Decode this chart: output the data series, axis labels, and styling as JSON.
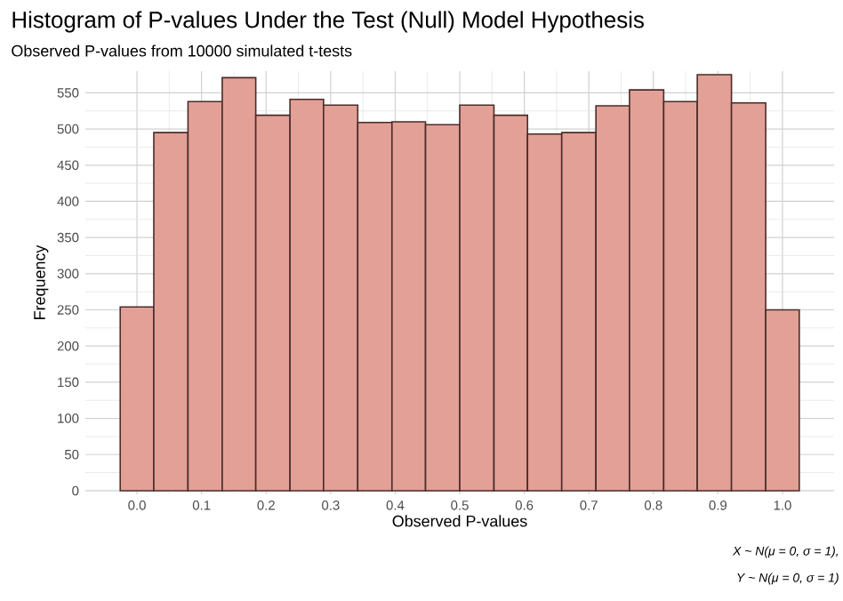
{
  "chart_data": {
    "type": "histogram",
    "title": "Histogram of P-values Under the Test (Null) Model Hypothesis",
    "subtitle": "Observed P-values from 10000 simulated t-tests",
    "xlabel": "Observed P-values",
    "ylabel": "Frequency",
    "bins": [
      -0.026,
      0.026,
      0.079,
      0.132,
      0.184,
      0.237,
      0.289,
      0.342,
      0.395,
      0.447,
      0.5,
      0.553,
      0.605,
      0.658,
      0.711,
      0.763,
      0.816,
      0.868,
      0.921,
      0.974,
      1.026
    ],
    "values": [
      254,
      495,
      538,
      571,
      519,
      541,
      533,
      509,
      510,
      506,
      533,
      519,
      493,
      495,
      532,
      554,
      538,
      575,
      536,
      250
    ],
    "color": "#e3a096",
    "xlim": [
      -0.08,
      1.08
    ],
    "ylim": [
      -5,
      580
    ],
    "xticks": [
      {
        "value": 0,
        "label": "0.0"
      },
      {
        "value": 0.1,
        "label": "0.1"
      },
      {
        "value": 0.2,
        "label": "0.2"
      },
      {
        "value": 0.3,
        "label": "0.3"
      },
      {
        "value": 0.4,
        "label": "0.4"
      },
      {
        "value": 0.5,
        "label": "0.5"
      },
      {
        "value": 0.6,
        "label": "0.6"
      },
      {
        "value": 0.7,
        "label": "0.7"
      },
      {
        "value": 0.8,
        "label": "0.8"
      },
      {
        "value": 0.9,
        "label": "0.9"
      },
      {
        "value": 1.0,
        "label": "1.0"
      }
    ],
    "yticks": [
      0,
      50,
      100,
      150,
      200,
      250,
      300,
      350,
      400,
      450,
      500,
      550
    ],
    "grid": true,
    "legend": false,
    "annotations": [
      "*X ~ N(μ = 0, σ = 1),*",
      "*Y ~ N(μ = 0, σ = 1)*"
    ]
  }
}
